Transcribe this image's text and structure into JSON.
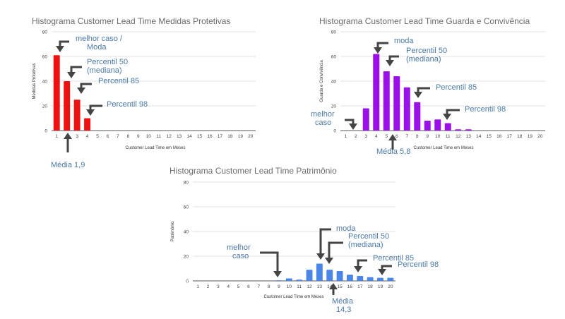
{
  "colors": {
    "red": "#ee1111",
    "purple": "#9b10e8",
    "blue": "#4a86e8",
    "annotation": "#4a7aa8",
    "arrow": "#444444"
  },
  "chart_data": [
    {
      "type": "bar",
      "title": "Histograma Customer Lead Time Medidas Protetivas",
      "xlabel": "Customer Lead Time em Meses",
      "ylabel": "Medidas Protetivas",
      "ylim": [
        0,
        80
      ],
      "yticks": [
        "0",
        "20",
        "40",
        "60",
        "80"
      ],
      "categories": [
        "1",
        "2",
        "3",
        "4",
        "5",
        "6",
        "7",
        "8",
        "9",
        "10",
        "11",
        "12",
        "13",
        "14",
        "15",
        "16",
        "17",
        "18",
        "19",
        "20"
      ],
      "values": [
        61,
        40,
        25,
        10,
        0,
        0,
        0,
        0,
        0,
        0,
        0,
        0,
        0,
        0,
        0,
        0,
        0,
        0,
        0,
        0
      ],
      "grid": true,
      "color": "#ee1111",
      "annotations": [
        {
          "lines": [
            "melhor caso /",
            "Moda"
          ]
        },
        {
          "lines": [
            "Percentil 50",
            "(mediana)"
          ]
        },
        {
          "lines": [
            "Percentil 85"
          ]
        },
        {
          "lines": [
            "Percentil 98"
          ]
        },
        {
          "lines": [
            "Média 1,9"
          ]
        }
      ]
    },
    {
      "type": "bar",
      "title": "Histograma Customer Lead Time Guarda e Convivência",
      "xlabel": "Customer Lead Time em Meses",
      "ylabel": "Guarda e Convivência",
      "ylim": [
        0,
        80
      ],
      "yticks": [
        "0",
        "20",
        "40",
        "60",
        "80"
      ],
      "categories": [
        "1",
        "2",
        "3",
        "4",
        "5",
        "6",
        "7",
        "8",
        "9",
        "10",
        "11",
        "12",
        "13",
        "14",
        "15",
        "16",
        "17",
        "18",
        "19",
        "20"
      ],
      "values": [
        0,
        0,
        18,
        62,
        48,
        44,
        35,
        23,
        8,
        9,
        6,
        1,
        1,
        0,
        0,
        0,
        0,
        0,
        0,
        0
      ],
      "grid": true,
      "color": "#9b10e8",
      "annotations": [
        {
          "lines": [
            "moda"
          ]
        },
        {
          "lines": [
            "Percentil 50",
            "(mediana)"
          ]
        },
        {
          "lines": [
            "Percentil 85"
          ]
        },
        {
          "lines": [
            "Percentil 98"
          ]
        },
        {
          "lines": [
            "melhor",
            "caso"
          ]
        },
        {
          "lines": [
            "Média 5,8"
          ]
        }
      ]
    },
    {
      "type": "bar",
      "title": "Histograma Customer Lead Time Patrimônio",
      "xlabel": "Customer Lead Time em Meses",
      "ylabel": "Patrimônio",
      "ylim": [
        0,
        80
      ],
      "yticks": [
        "0",
        "20",
        "40",
        "60",
        "80"
      ],
      "categories": [
        "1",
        "2",
        "3",
        "4",
        "5",
        "6",
        "7",
        "8",
        "9",
        "10",
        "11",
        "12",
        "13",
        "14",
        "15",
        "16",
        "17",
        "18",
        "19",
        "20"
      ],
      "values": [
        0,
        0,
        0,
        0,
        0,
        0,
        0,
        0,
        0.5,
        2,
        1,
        9,
        14,
        9,
        8,
        5,
        4,
        3,
        2.5,
        2.5
      ],
      "grid": true,
      "color": "#4a86e8",
      "annotations": [
        {
          "lines": [
            "moda"
          ]
        },
        {
          "lines": [
            "Percentil 50",
            "(mediana)"
          ]
        },
        {
          "lines": [
            "melhor",
            "caso"
          ]
        },
        {
          "lines": [
            "Percentil 85"
          ]
        },
        {
          "lines": [
            "Percentil 98"
          ]
        },
        {
          "lines": [
            "Média",
            "14,3"
          ]
        }
      ]
    }
  ]
}
